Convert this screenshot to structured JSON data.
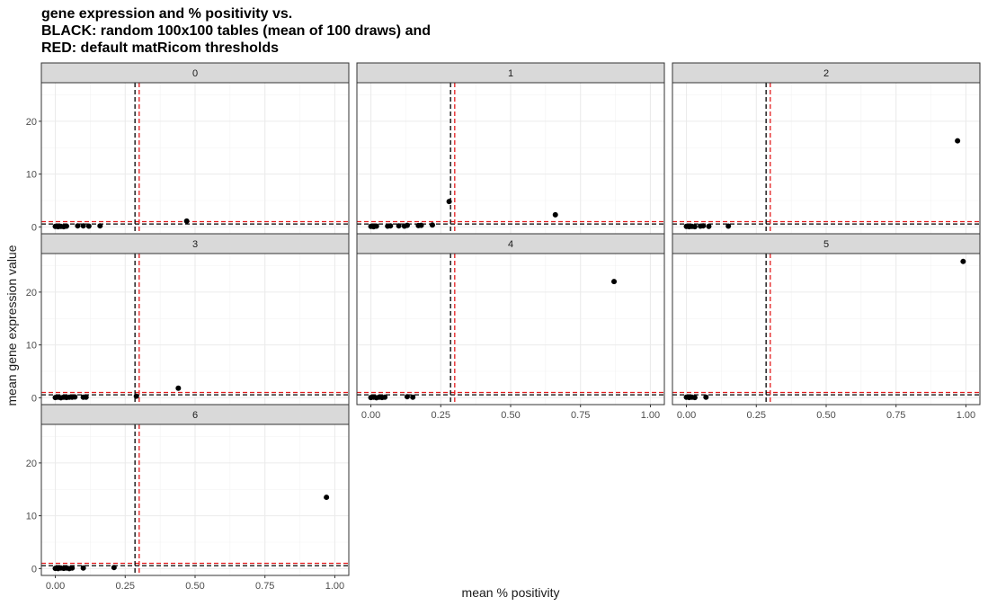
{
  "title": [
    "gene expression and % positivity vs.",
    "BLACK: random 100x100 tables (mean of 100 draws) and",
    "RED: default matRicom thresholds"
  ],
  "chart_data": {
    "type": "scatter",
    "xlabel": "mean % positivity",
    "ylabel": "mean gene expression value",
    "xlim": [
      -0.05,
      1.05
    ],
    "ylim": [
      -1.3,
      27.3
    ],
    "x_ticks": [
      0,
      0.25,
      0.5,
      0.75,
      1.0
    ],
    "x_tick_labels": [
      "0.00",
      "0.25",
      "0.50",
      "0.75",
      "1.00"
    ],
    "y_ticks": [
      0,
      10,
      20
    ],
    "y_tick_labels": [
      "0",
      "10",
      "20"
    ],
    "grid": true,
    "reference_lines": {
      "black": {
        "x": 0.285,
        "y": 0.55,
        "style": "dashed",
        "color": "#000000"
      },
      "red": {
        "x": 0.3,
        "y": 1.0,
        "style": "dashed",
        "color": "#e31a1c"
      }
    },
    "panels": [
      {
        "label": "0",
        "points": [
          [
            0.0,
            0.1
          ],
          [
            0.01,
            0.05
          ],
          [
            0.02,
            0.1
          ],
          [
            0.03,
            0.05
          ],
          [
            0.04,
            0.15
          ],
          [
            0.08,
            0.2
          ],
          [
            0.1,
            0.2
          ],
          [
            0.12,
            0.15
          ],
          [
            0.16,
            0.2
          ],
          [
            0.47,
            1.1
          ]
        ]
      },
      {
        "label": "1",
        "points": [
          [
            0.0,
            0.1
          ],
          [
            0.01,
            0.05
          ],
          [
            0.02,
            0.15
          ],
          [
            0.06,
            0.15
          ],
          [
            0.07,
            0.2
          ],
          [
            0.1,
            0.2
          ],
          [
            0.12,
            0.15
          ],
          [
            0.13,
            0.3
          ],
          [
            0.17,
            0.25
          ],
          [
            0.18,
            0.3
          ],
          [
            0.22,
            0.35
          ],
          [
            0.28,
            4.8
          ],
          [
            0.66,
            2.3
          ]
        ]
      },
      {
        "label": "2",
        "points": [
          [
            0.0,
            0.1
          ],
          [
            0.01,
            0.05
          ],
          [
            0.02,
            0.1
          ],
          [
            0.03,
            0.05
          ],
          [
            0.05,
            0.15
          ],
          [
            0.06,
            0.2
          ],
          [
            0.08,
            0.1
          ],
          [
            0.15,
            0.15
          ],
          [
            0.97,
            16.3
          ]
        ]
      },
      {
        "label": "3",
        "points": [
          [
            0.0,
            0.05
          ],
          [
            0.01,
            0.1
          ],
          [
            0.02,
            0.0
          ],
          [
            0.03,
            0.1
          ],
          [
            0.04,
            0.05
          ],
          [
            0.05,
            0.1
          ],
          [
            0.06,
            0.1
          ],
          [
            0.07,
            0.15
          ],
          [
            0.1,
            0.1
          ],
          [
            0.11,
            0.1
          ],
          [
            0.29,
            0.3
          ],
          [
            0.44,
            1.8
          ]
        ]
      },
      {
        "label": "4",
        "points": [
          [
            0.0,
            0.05
          ],
          [
            0.01,
            0.1
          ],
          [
            0.02,
            0.0
          ],
          [
            0.03,
            0.1
          ],
          [
            0.04,
            0.05
          ],
          [
            0.05,
            0.1
          ],
          [
            0.13,
            0.2
          ],
          [
            0.15,
            0.1
          ],
          [
            0.87,
            22.0
          ]
        ]
      },
      {
        "label": "5",
        "points": [
          [
            0.0,
            0.1
          ],
          [
            0.01,
            0.05
          ],
          [
            0.02,
            0.1
          ],
          [
            0.03,
            0.05
          ],
          [
            0.07,
            0.1
          ],
          [
            0.99,
            25.8
          ]
        ]
      },
      {
        "label": "6",
        "points": [
          [
            0.0,
            0.05
          ],
          [
            0.01,
            0.0
          ],
          [
            0.02,
            0.1
          ],
          [
            0.03,
            0.05
          ],
          [
            0.04,
            0.1
          ],
          [
            0.05,
            0.0
          ],
          [
            0.06,
            0.1
          ],
          [
            0.1,
            0.1
          ],
          [
            0.21,
            0.2
          ],
          [
            0.97,
            13.5
          ]
        ]
      }
    ]
  }
}
